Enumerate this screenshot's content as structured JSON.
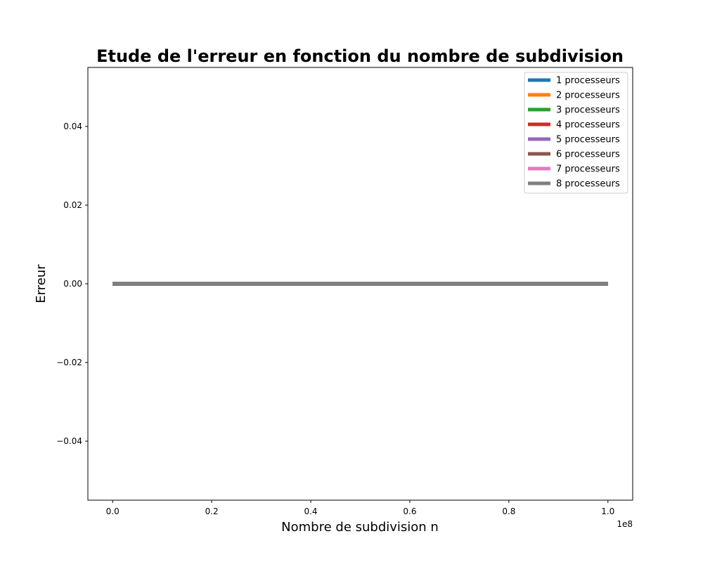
{
  "chart_data": {
    "type": "line",
    "title": "Etude de l'erreur en fonction du nombre de subdivision",
    "xlabel": "Nombre de subdivision n",
    "ylabel": "Erreur",
    "x_offset_label": "1e8",
    "xlim": [
      -0.05,
      1.05
    ],
    "ylim": [
      -0.055,
      0.055
    ],
    "x_ticks": [
      0.0,
      0.2,
      0.4,
      0.6,
      0.8,
      1.0
    ],
    "x_tick_labels": [
      "0.0",
      "0.2",
      "0.4",
      "0.6",
      "0.8",
      "1.0"
    ],
    "y_ticks": [
      0.04,
      0.02,
      0.0,
      -0.02,
      -0.04
    ],
    "y_tick_labels": [
      "0.04",
      "0.02",
      "0.00",
      "−0.02",
      "−0.04"
    ],
    "grid": false,
    "legend_position": "top-right",
    "series": [
      {
        "name": "1 processeurs",
        "color": "#1f77b4",
        "x": [
          0.0,
          1.0
        ],
        "y": [
          0.0,
          0.0
        ]
      },
      {
        "name": "2 processeurs",
        "color": "#ff7f0e",
        "x": [
          0.0,
          1.0
        ],
        "y": [
          0.0,
          0.0
        ]
      },
      {
        "name": "3 processeurs",
        "color": "#2ca02c",
        "x": [
          0.0,
          1.0
        ],
        "y": [
          0.0,
          0.0
        ]
      },
      {
        "name": "4 processeurs",
        "color": "#d62728",
        "x": [
          0.0,
          1.0
        ],
        "y": [
          0.0,
          0.0
        ]
      },
      {
        "name": "5 processeurs",
        "color": "#9467bd",
        "x": [
          0.0,
          1.0
        ],
        "y": [
          0.0,
          0.0
        ]
      },
      {
        "name": "6 processeurs",
        "color": "#8c564b",
        "x": [
          0.0,
          1.0
        ],
        "y": [
          0.0,
          0.0
        ]
      },
      {
        "name": "7 processeurs",
        "color": "#e377c2",
        "x": [
          0.0,
          1.0
        ],
        "y": [
          0.0,
          0.0
        ]
      },
      {
        "name": "8 processeurs",
        "color": "#7f7f7f",
        "x": [
          0.0,
          1.0
        ],
        "y": [
          0.0,
          0.0
        ]
      }
    ]
  }
}
